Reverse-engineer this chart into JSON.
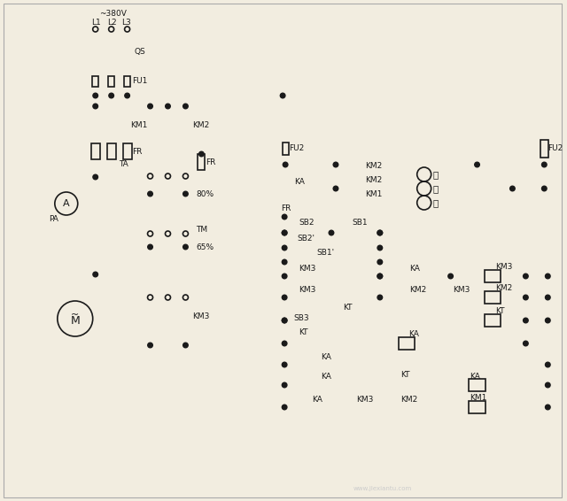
{
  "bg_color": "#f2ede0",
  "line_color": "#1a1a1a",
  "figsize": [
    6.4,
    5.66
  ],
  "dpi": 100,
  "green_label": "绿",
  "yellow_label": "黄",
  "red_label": "红"
}
